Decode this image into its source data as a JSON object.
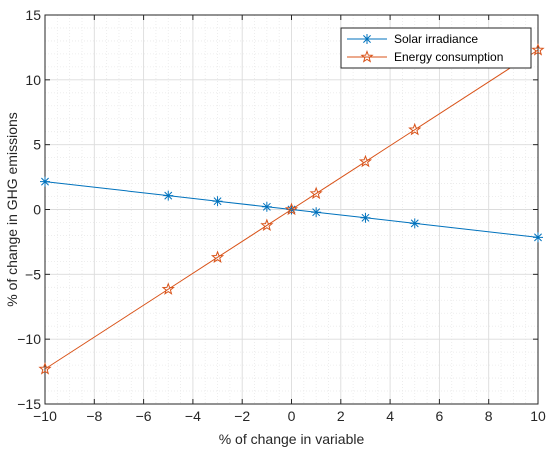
{
  "chart_data": {
    "type": "line",
    "title": "",
    "xlabel": "% of change in variable",
    "ylabel": "% of change in GHG emissions",
    "xlim": [
      -10,
      10
    ],
    "ylim": [
      -15,
      15
    ],
    "x_ticks": [
      -10,
      -8,
      -6,
      -4,
      -2,
      0,
      2,
      4,
      6,
      8,
      10
    ],
    "y_ticks": [
      -15,
      -10,
      -5,
      0,
      5,
      10,
      15
    ],
    "x_tick_labels": [
      "−10",
      "−8",
      "−6",
      "−4",
      "−2",
      "0",
      "2",
      "4",
      "6",
      "8",
      "10"
    ],
    "y_tick_labels": [
      "−15",
      "−10",
      "−5",
      "0",
      "5",
      "10",
      "15"
    ],
    "grid": "major and minor",
    "legend_position": "top-right",
    "series": [
      {
        "name": "Solar irradiance",
        "color": "#0072BD",
        "marker": "asterisk",
        "x": [
          -10,
          -5,
          -3,
          -1,
          0,
          1,
          3,
          5,
          10
        ],
        "y": [
          2.15,
          1.07,
          0.64,
          0.21,
          0,
          -0.21,
          -0.64,
          -1.07,
          -2.15
        ]
      },
      {
        "name": "Energy consumption",
        "color": "#D95319",
        "marker": "pentagram",
        "x": [
          -10,
          -5,
          -3,
          -1,
          0,
          1,
          3,
          5,
          10
        ],
        "y": [
          -12.3,
          -6.15,
          -3.69,
          -1.23,
          0,
          1.23,
          3.69,
          6.15,
          12.3
        ]
      }
    ]
  }
}
